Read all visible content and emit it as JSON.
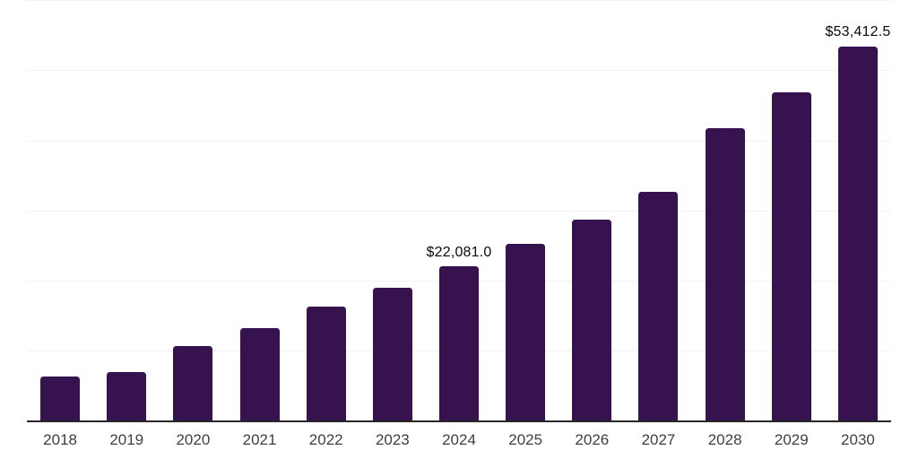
{
  "chart_data": {
    "type": "bar",
    "title": "",
    "xlabel": "",
    "ylabel": "",
    "categories": [
      "2018",
      "2019",
      "2020",
      "2021",
      "2022",
      "2023",
      "2024",
      "2025",
      "2026",
      "2027",
      "2028",
      "2029",
      "2030"
    ],
    "values": [
      6270,
      6970,
      10720,
      13270,
      16270,
      19000,
      22081.0,
      25300,
      28720,
      32650,
      41780,
      46830,
      53412.5
    ],
    "data_labels": [
      {
        "index": 6,
        "text": "$22,081.0"
      },
      {
        "index": 12,
        "text": "$53,412.5"
      }
    ],
    "ylim": [
      0,
      60000
    ],
    "grid_step": 10000,
    "grid": true,
    "legend_position": "none",
    "colors": {
      "bar": "#36124e",
      "gridline": "#f2f2f2",
      "axis_line": "#272727",
      "tick_label": "#3f3f3f",
      "data_label": "#0a0a0a",
      "background": "#ffffff"
    }
  }
}
